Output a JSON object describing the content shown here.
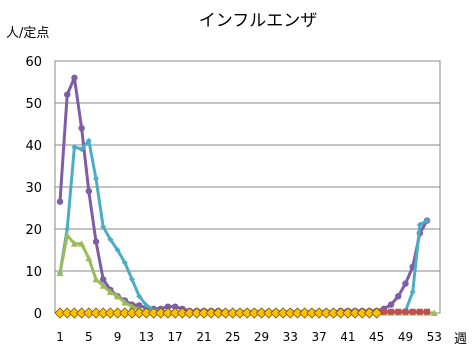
{
  "chart_data": {
    "type": "line",
    "title": "インフルエンザ",
    "ylabel": "人/定点",
    "xlabel": "週",
    "ylim": [
      0,
      60
    ],
    "yticks": [
      0,
      10,
      20,
      30,
      40,
      50,
      60
    ],
    "xlim": [
      1,
      53
    ],
    "xticks": [
      1,
      5,
      9,
      13,
      17,
      21,
      25,
      29,
      33,
      37,
      41,
      45,
      49,
      53
    ],
    "grid": "horizontal",
    "series": [
      {
        "color": "#7f5ca6",
        "marker": "circle",
        "x": [
          1,
          2,
          3,
          4,
          5,
          6,
          7,
          8,
          9,
          10,
          11,
          12,
          13,
          14,
          15,
          16,
          17,
          18,
          19,
          20,
          21,
          22,
          23,
          24,
          25,
          26,
          27,
          28,
          29,
          30,
          31,
          32,
          33,
          34,
          35,
          36,
          37,
          38,
          39,
          40,
          41,
          42,
          43,
          44,
          45,
          46,
          47,
          48,
          49,
          50,
          51,
          52
        ],
        "values": [
          26.5,
          52,
          56,
          44,
          29,
          17,
          8,
          5.5,
          4,
          3,
          2,
          1.8,
          1.2,
          1,
          1,
          1.5,
          1.5,
          1,
          0.5,
          0.5,
          0.5,
          0.5,
          0.5,
          0.3,
          0.3,
          0.3,
          0.3,
          0.3,
          0.3,
          0.3,
          0.3,
          0.3,
          0.3,
          0.3,
          0.3,
          0.3,
          0.3,
          0.3,
          0.3,
          0.5,
          0.5,
          0.5,
          0.5,
          0.5,
          0.5,
          1,
          2,
          4,
          7,
          11,
          19,
          22
        ]
      },
      {
        "color": "#4bacc6",
        "marker": "diamond",
        "x": [
          1,
          2,
          3,
          4,
          5,
          6,
          7,
          8,
          9,
          10,
          11,
          12,
          13,
          14,
          15,
          16,
          17,
          18,
          19,
          20,
          21,
          22,
          23,
          24,
          25,
          26,
          27,
          28,
          29,
          30,
          31,
          32,
          33,
          34,
          35,
          36,
          37,
          38,
          39,
          40,
          41,
          42,
          43,
          44,
          45,
          46,
          47,
          48,
          49,
          50,
          51,
          52
        ],
        "values": [
          9.5,
          20,
          39.5,
          39,
          41,
          32,
          20.5,
          17.5,
          15,
          12,
          8,
          4,
          1.8,
          0.8,
          0.5,
          0.3,
          0.2,
          0.2,
          0.1,
          0.1,
          0.1,
          0.1,
          0.1,
          0.1,
          0.1,
          0.1,
          0.1,
          0.1,
          0.1,
          0.1,
          0.1,
          0.1,
          0.1,
          0.1,
          0.1,
          0.1,
          0.1,
          0.1,
          0.1,
          0.1,
          0.1,
          0.1,
          0.1,
          0.1,
          0.1,
          0.1,
          0.1,
          0.2,
          0.5,
          5,
          21,
          22
        ]
      },
      {
        "color": "#9bbb59",
        "marker": "triangle",
        "x": [
          1,
          2,
          3,
          4,
          5,
          6,
          7,
          8,
          9,
          10,
          11,
          12,
          13,
          14,
          15,
          16,
          17,
          18,
          19,
          20,
          21,
          22,
          23,
          24,
          25,
          26,
          27,
          28,
          29,
          30,
          31,
          32,
          33,
          34,
          35,
          36,
          37,
          38,
          39,
          40,
          41,
          42,
          43,
          44,
          45,
          46,
          47,
          48,
          49,
          50,
          51,
          52,
          53
        ],
        "values": [
          9.5,
          18.5,
          16.5,
          16.5,
          13,
          8,
          6.5,
          5,
          4,
          2.5,
          1.5,
          0.8,
          0.3,
          0.2,
          0.1,
          0.1,
          0.1,
          0.1,
          0.1,
          0.1,
          0.1,
          0.1,
          0.1,
          0.1,
          0.1,
          0.1,
          0.1,
          0.1,
          0.1,
          0.1,
          0.1,
          0.1,
          0.1,
          0.1,
          0.1,
          0.1,
          0.1,
          0.1,
          0.1,
          0.1,
          0.1,
          0.1,
          0.1,
          0.1,
          0.1,
          0.1,
          0.1,
          0.1,
          0.1,
          0.1,
          0.1,
          0.1,
          0
        ]
      },
      {
        "color": "#c0504d",
        "marker": "square",
        "x": [
          45,
          46,
          47,
          48,
          49,
          50,
          51,
          52
        ],
        "values": [
          0.3,
          0.3,
          0.3,
          0.3,
          0.3,
          0.3,
          0.3,
          0.3
        ]
      },
      {
        "color": "#ffc000",
        "marker": "diamond",
        "x": [
          1,
          2,
          3,
          4,
          5,
          6,
          7,
          8,
          9,
          10,
          11,
          12,
          13,
          14,
          15,
          16,
          17,
          18,
          19,
          20,
          21,
          22,
          23,
          24,
          25,
          26,
          27,
          28,
          29,
          30,
          31,
          32,
          33,
          34,
          35,
          36,
          37,
          38,
          39,
          40,
          41,
          42,
          43,
          44,
          45
        ],
        "values": [
          0,
          0,
          0,
          0,
          0,
          0,
          0,
          0,
          0,
          0,
          0,
          0,
          0,
          0,
          0,
          0,
          0,
          0,
          0,
          0,
          0,
          0,
          0,
          0,
          0,
          0,
          0,
          0,
          0,
          0,
          0,
          0,
          0,
          0,
          0,
          0,
          0,
          0,
          0,
          0,
          0,
          0,
          0,
          0,
          0
        ]
      }
    ]
  }
}
